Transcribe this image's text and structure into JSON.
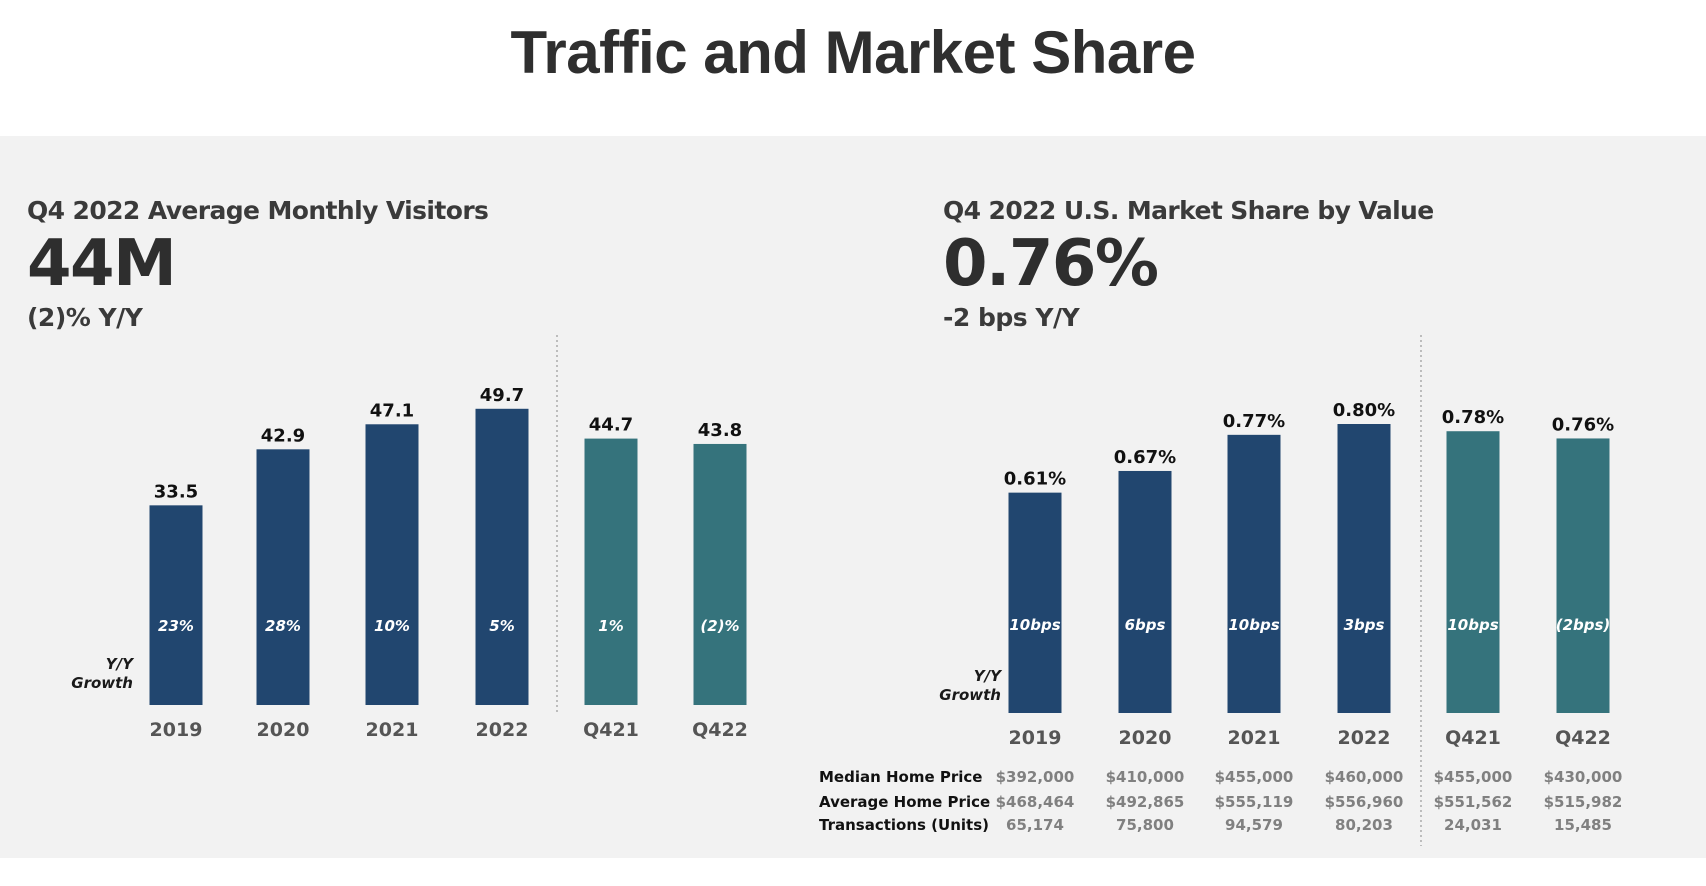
{
  "page": {
    "title": "Traffic and Market Share"
  },
  "colors": {
    "dark_bar": "#21466f",
    "teal_bar": "#35737c",
    "panel_bg": "#f2f2f2"
  },
  "visitors": {
    "label": "Q4 2022 Average Monthly Visitors",
    "value": "44M",
    "change": "(2)% Y/Y"
  },
  "market_share": {
    "label": "Q4 2022 U.S. Market Share by Value",
    "value": "0.76%",
    "change": "-2 bps Y/Y"
  },
  "chart_data": [
    {
      "type": "bar",
      "categories": [
        "2019",
        "2020",
        "2021",
        "2022",
        "Q421",
        "Q422"
      ],
      "values": [
        33.5,
        42.9,
        47.1,
        49.7,
        44.7,
        43.8
      ],
      "value_labels": [
        "33.5",
        "42.9",
        "47.1",
        "49.7",
        "44.7",
        "43.8"
      ],
      "growth_labels": [
        "23%",
        "28%",
        "10%",
        "5%",
        "1%",
        "(2)%"
      ],
      "growth_caption": [
        "Y/Y",
        "Growth"
      ],
      "bar_colors": [
        "#21466f",
        "#21466f",
        "#21466f",
        "#21466f",
        "#35737c",
        "#35737c"
      ],
      "ylim": [
        0,
        50
      ],
      "grid": false
    },
    {
      "type": "bar",
      "categories": [
        "2019",
        "2020",
        "2021",
        "2022",
        "Q421",
        "Q422"
      ],
      "values": [
        0.61,
        0.67,
        0.77,
        0.8,
        0.78,
        0.76
      ],
      "value_labels": [
        "0.61%",
        "0.67%",
        "0.77%",
        "0.80%",
        "0.78%",
        "0.76%"
      ],
      "growth_labels": [
        "10bps",
        "6bps",
        "10bps",
        "3bps",
        "10bps",
        "(2bps)"
      ],
      "growth_caption": [
        "Y/Y",
        "Growth"
      ],
      "bar_colors": [
        "#21466f",
        "#21466f",
        "#21466f",
        "#21466f",
        "#35737c",
        "#35737c"
      ],
      "ylim": [
        0,
        0.8
      ],
      "grid": false,
      "table": {
        "rows": [
          {
            "label": "Median Home Price",
            "values": [
              "$392,000",
              "$410,000",
              "$455,000",
              "$460,000",
              "$455,000",
              "$430,000"
            ]
          },
          {
            "label": "Average Home Price",
            "values": [
              "$468,464",
              "$492,865",
              "$555,119",
              "$556,960",
              "$551,562",
              "$515,982"
            ]
          },
          {
            "label": "Transactions (Units)",
            "values": [
              "65,174",
              "75,800",
              "94,579",
              "80,203",
              "24,031",
              "15,485"
            ]
          }
        ]
      }
    }
  ]
}
